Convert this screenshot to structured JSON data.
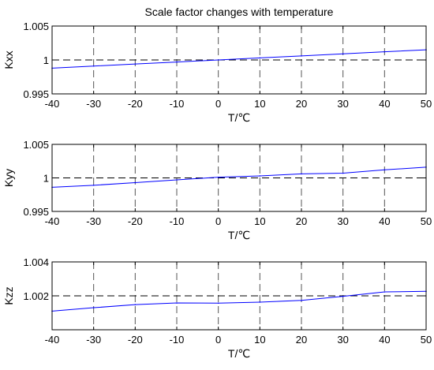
{
  "figure": {
    "title": "Scale factor changes with temperature"
  },
  "chart_data": [
    {
      "type": "line",
      "title": "Scale factor changes with temperature",
      "xlabel": "T/℃",
      "ylabel": "Kxx",
      "xlim": [
        -40,
        50
      ],
      "ylim": [
        0.995,
        1.005
      ],
      "xticks": [
        -40,
        -30,
        -20,
        -10,
        0,
        10,
        20,
        30,
        40,
        50
      ],
      "xtick_labels": [
        "-40",
        "-30",
        "-20",
        "-10",
        "0",
        "10",
        "20",
        "30",
        "40",
        "50"
      ],
      "yticks": [
        0.995,
        1,
        1.005
      ],
      "ytick_labels": [
        "0.995",
        "1",
        "1.005"
      ],
      "grid": true,
      "x": [
        -40,
        -30,
        -20,
        -10,
        0,
        10,
        20,
        30,
        40,
        50
      ],
      "series": [
        {
          "values": [
            0.9988,
            0.9991,
            0.9994,
            0.9997,
            1.0,
            1.0003,
            1.0006,
            1.0009,
            1.0012,
            1.0015
          ],
          "color": "#0000ff"
        }
      ],
      "reference_line": {
        "y": 1,
        "color": "#000000"
      }
    },
    {
      "type": "line",
      "xlabel": "T/℃",
      "ylabel": "Kyy",
      "xlim": [
        -40,
        50
      ],
      "ylim": [
        0.995,
        1.005
      ],
      "xticks": [
        -40,
        -30,
        -20,
        -10,
        0,
        10,
        20,
        30,
        40,
        50
      ],
      "xtick_labels": [
        "-40",
        "-30",
        "-20",
        "-10",
        "0",
        "10",
        "20",
        "30",
        "40",
        "50"
      ],
      "yticks": [
        0.995,
        1,
        1.005
      ],
      "ytick_labels": [
        "0.995",
        "1",
        "1.005"
      ],
      "grid": true,
      "x": [
        -40,
        -30,
        -20,
        -10,
        0,
        10,
        20,
        30,
        40,
        50
      ],
      "series": [
        {
          "values": [
            0.9986,
            0.9989,
            0.9993,
            0.9997,
            1.0001,
            1.0003,
            1.0006,
            1.0007,
            1.0012,
            1.0016
          ],
          "color": "#0000ff"
        }
      ],
      "reference_line": {
        "y": 1,
        "color": "#000000"
      }
    },
    {
      "type": "line",
      "xlabel": "T/℃",
      "ylabel": "Kzz",
      "xlim": [
        -40,
        50
      ],
      "ylim": [
        1,
        1.004
      ],
      "xticks": [
        -40,
        -30,
        -20,
        -10,
        0,
        10,
        20,
        30,
        40,
        50
      ],
      "xtick_labels": [
        "-40",
        "-30",
        "-20",
        "-10",
        "0",
        "10",
        "20",
        "30",
        "40",
        "50"
      ],
      "yticks": [
        1.002,
        1.004
      ],
      "ytick_labels": [
        "1.002",
        "1.004"
      ],
      "grid": true,
      "x": [
        -40,
        -30,
        -20,
        -10,
        0,
        10,
        20,
        30,
        40,
        50
      ],
      "series": [
        {
          "values": [
            1.0011,
            1.0013,
            1.00148,
            1.00158,
            1.00157,
            1.00163,
            1.00173,
            1.00197,
            1.00223,
            1.00227
          ],
          "color": "#0000ff"
        }
      ],
      "reference_line": {
        "y": 1.002,
        "color": "#000000"
      }
    }
  ]
}
